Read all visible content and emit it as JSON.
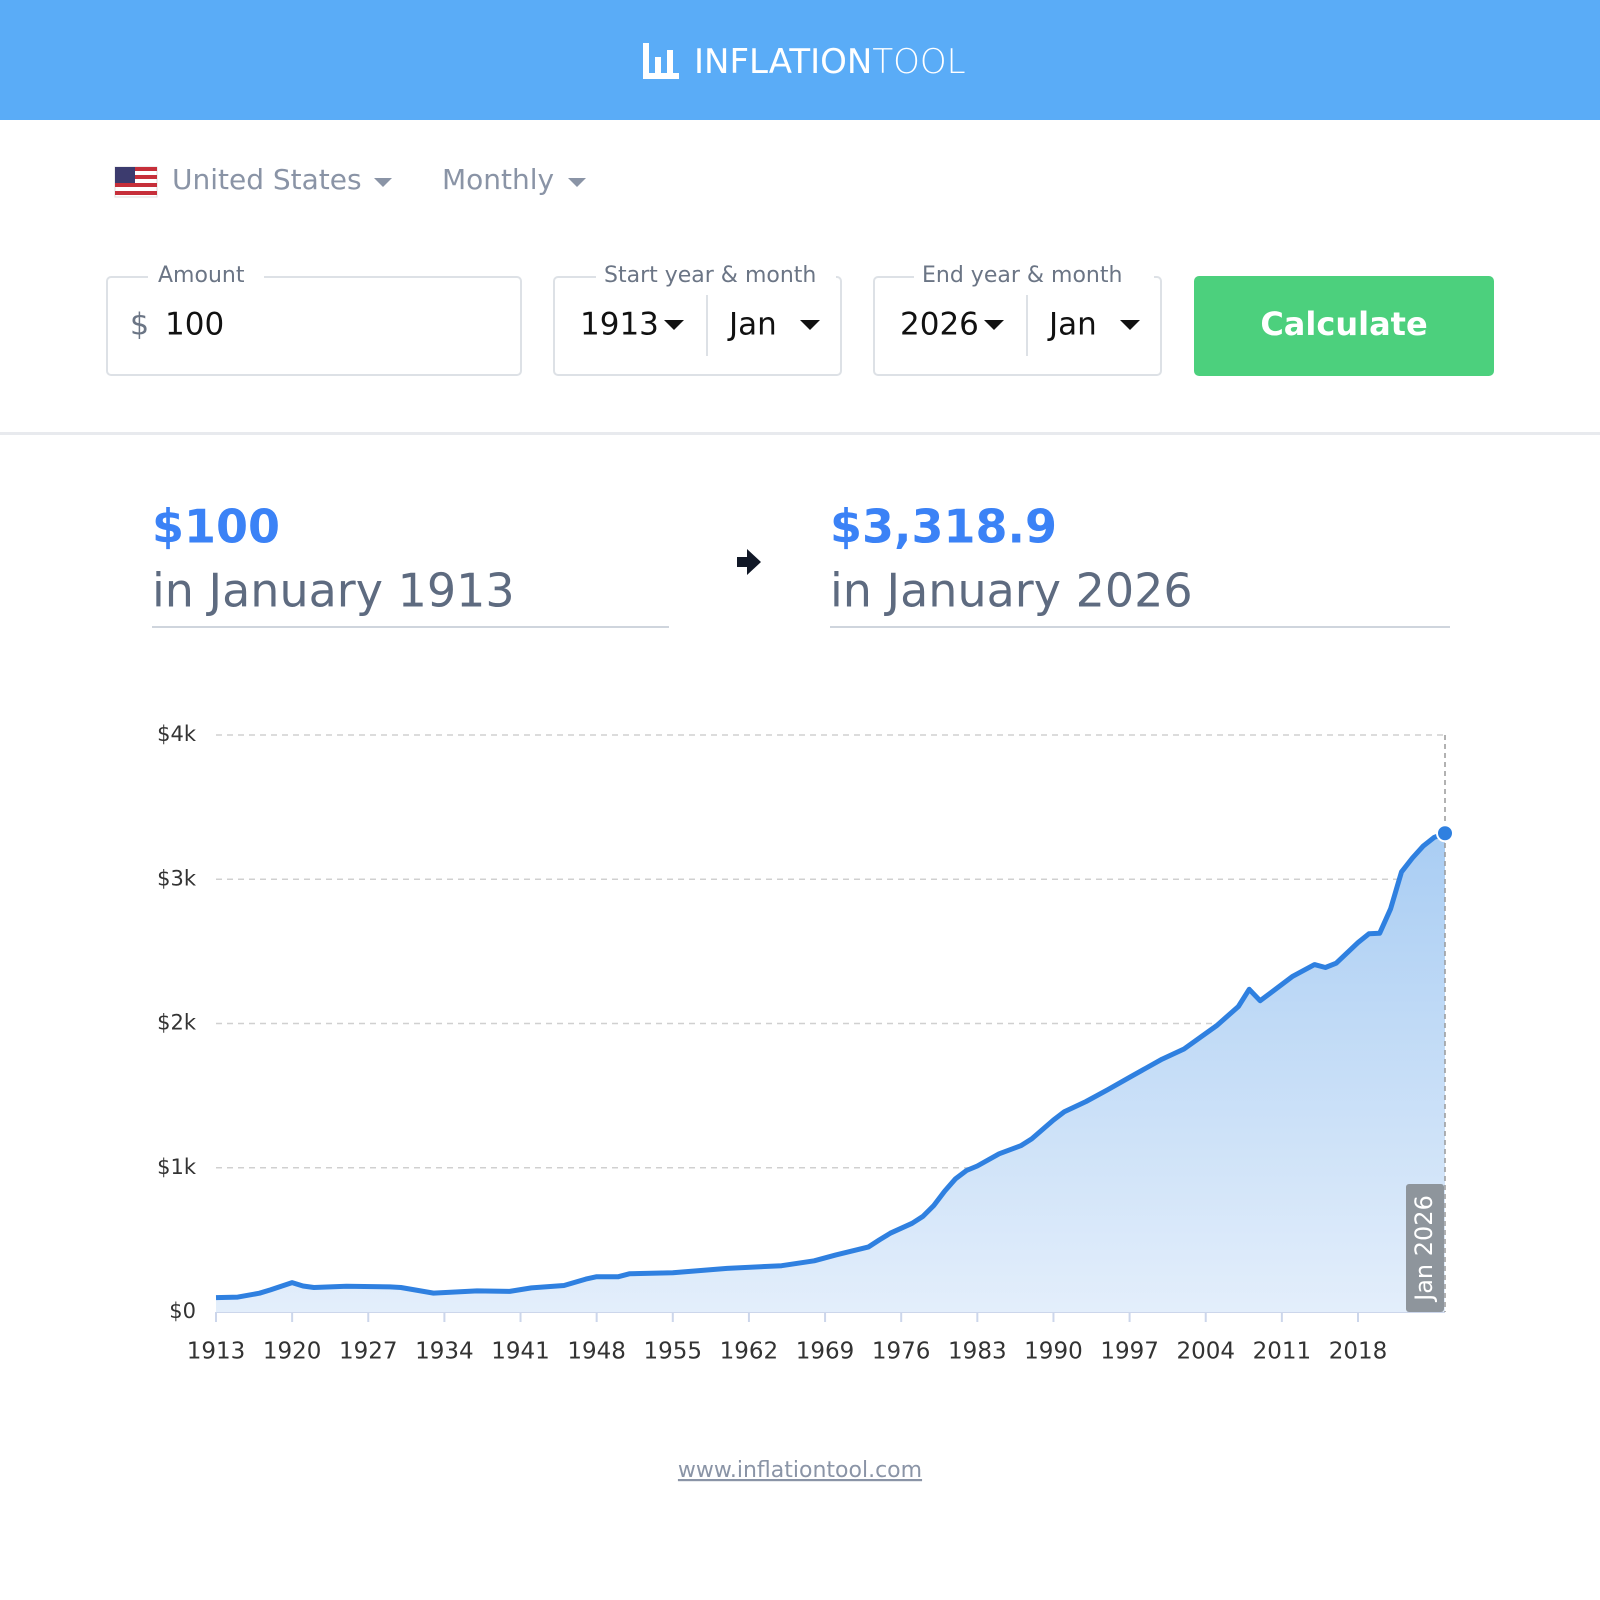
{
  "header": {
    "brand_bold": "INFLATION",
    "brand_light": "TOOL"
  },
  "controls": {
    "country": "United States",
    "frequency": "Monthly"
  },
  "form": {
    "amount_label": "Amount",
    "currency": "$",
    "amount": "100",
    "start_label": "Start year & month",
    "start_year": "1913",
    "start_month": "Jan",
    "end_label": "End year & month",
    "end_year": "2026",
    "end_month": "Jan",
    "button": "Calculate"
  },
  "result": {
    "from_value": "$100",
    "from_text": "in January 1913",
    "to_value": "$3,318.9",
    "to_text": "in January 2026"
  },
  "chart_data": {
    "type": "line",
    "color": "#2f80e0",
    "grid": true,
    "annotation": "Jan 2026",
    "x": [
      1913,
      1915,
      1917,
      1918,
      1920,
      1921,
      1922,
      1925,
      1929,
      1930,
      1933,
      1937,
      1940,
      1942,
      1945,
      1947,
      1948,
      1950,
      1951,
      1955,
      1960,
      1965,
      1968,
      1970,
      1973,
      1974,
      1975,
      1977,
      1978,
      1979,
      1980,
      1981,
      1982,
      1983,
      1985,
      1987,
      1988,
      1990,
      1991,
      1993,
      1995,
      1997,
      2000,
      2002,
      2005,
      2007,
      2008,
      2009,
      2010,
      2012,
      2014,
      2015,
      2016,
      2018,
      2019,
      2020,
      2021,
      2022,
      2023,
      2024,
      2025,
      2026
    ],
    "values": [
      100,
      103,
      130,
      153,
      204,
      180,
      170,
      179,
      174,
      170,
      131,
      146,
      143,
      167,
      184,
      228,
      245,
      245,
      265,
      272,
      302,
      321,
      355,
      396,
      451,
      500,
      546,
      615,
      663,
      738,
      838,
      924,
      981,
      1012,
      1097,
      1153,
      1200,
      1331,
      1388,
      1459,
      1541,
      1627,
      1753,
      1823,
      1985,
      2118,
      2237,
      2158,
      2214,
      2327,
      2408,
      2388,
      2418,
      2561,
      2622,
      2626,
      2795,
      3051,
      3147,
      3230,
      3290,
      3318.9
    ],
    "xlim": [
      1913,
      2026
    ],
    "xticks": [
      1913,
      1920,
      1927,
      1934,
      1941,
      1948,
      1955,
      1962,
      1969,
      1976,
      1983,
      1990,
      1997,
      2004,
      2011,
      2018
    ],
    "ylim": [
      0,
      4000
    ],
    "yticks": [
      {
        "value": 0,
        "label": "$0"
      },
      {
        "value": 1000,
        "label": "$1k"
      },
      {
        "value": 2000,
        "label": "$2k"
      },
      {
        "value": 3000,
        "label": "$3k"
      },
      {
        "value": 4000,
        "label": "$4k"
      }
    ]
  },
  "footer": {
    "link": "www.inflationtool.com"
  }
}
